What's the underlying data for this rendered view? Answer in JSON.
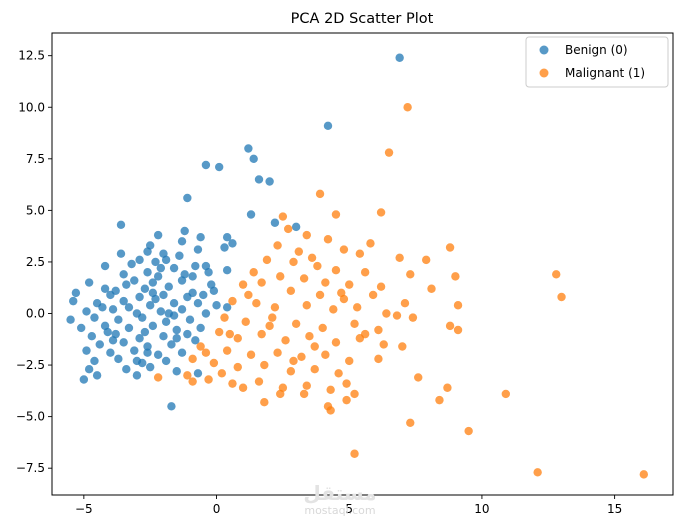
{
  "chart_data": {
    "type": "scatter",
    "title": "PCA 2D Scatter Plot",
    "xlabel": "",
    "ylabel": "",
    "xlim": [
      -6.2,
      17.2
    ],
    "ylim": [
      -8.8,
      13.6
    ],
    "xticks": [
      -5,
      0,
      5,
      10,
      15
    ],
    "yticks": [
      -7.5,
      -5.0,
      -2.5,
      0.0,
      2.5,
      5.0,
      7.5,
      10.0,
      12.5
    ],
    "xtick_labels": [
      "−5",
      "0",
      "5",
      "10",
      "15"
    ],
    "ytick_labels": [
      "−7.5",
      "−5.0",
      "−2.5",
      "0.0",
      "2.5",
      "5.0",
      "7.5",
      "10.0",
      "12.5"
    ],
    "grid": false,
    "legend_position": "top-right",
    "marker_alpha": 0.75,
    "series": [
      {
        "name": "Benign (0)",
        "color": "#1f77b4",
        "points": [
          [
            6.9,
            12.4
          ],
          [
            4.2,
            9.1
          ],
          [
            1.2,
            8.0
          ],
          [
            1.4,
            7.5
          ],
          [
            -0.4,
            7.2
          ],
          [
            0.1,
            7.1
          ],
          [
            1.6,
            6.5
          ],
          [
            2.0,
            6.4
          ],
          [
            -1.1,
            5.6
          ],
          [
            1.3,
            4.8
          ],
          [
            2.2,
            4.4
          ],
          [
            3.0,
            4.2
          ],
          [
            -3.6,
            4.3
          ],
          [
            -1.2,
            4.0
          ],
          [
            -2.2,
            3.8
          ],
          [
            0.4,
            3.7
          ],
          [
            -0.6,
            3.7
          ],
          [
            -1.3,
            3.5
          ],
          [
            0.6,
            3.4
          ],
          [
            -2.5,
            3.3
          ],
          [
            -2.6,
            3.0
          ],
          [
            -0.7,
            3.1
          ],
          [
            -2.0,
            2.9
          ],
          [
            0.3,
            3.2
          ],
          [
            -0.8,
            2.3
          ],
          [
            -1.4,
            2.8
          ],
          [
            -2.9,
            2.6
          ],
          [
            -3.2,
            2.4
          ],
          [
            -4.2,
            2.3
          ],
          [
            -2.3,
            2.5
          ],
          [
            -1.9,
            2.6
          ],
          [
            -0.4,
            2.3
          ],
          [
            0.4,
            2.1
          ],
          [
            -2.6,
            2.0
          ],
          [
            -1.6,
            2.2
          ],
          [
            -0.3,
            2.0
          ],
          [
            -3.5,
            1.9
          ],
          [
            -2.2,
            1.8
          ],
          [
            -0.9,
            1.8
          ],
          [
            -4.8,
            1.5
          ],
          [
            -3.1,
            1.6
          ],
          [
            -2.4,
            1.5
          ],
          [
            -1.3,
            1.6
          ],
          [
            -0.2,
            1.4
          ],
          [
            -4.2,
            1.2
          ],
          [
            -3.8,
            1.1
          ],
          [
            -2.7,
            1.2
          ],
          [
            -1.8,
            1.3
          ],
          [
            -0.9,
            1.0
          ],
          [
            -5.3,
            1.0
          ],
          [
            -4.0,
            0.9
          ],
          [
            -2.9,
            0.8
          ],
          [
            -2.0,
            0.9
          ],
          [
            -1.1,
            0.8
          ],
          [
            -0.5,
            0.9
          ],
          [
            -5.4,
            0.6
          ],
          [
            -4.5,
            0.5
          ],
          [
            -3.5,
            0.6
          ],
          [
            -2.5,
            0.4
          ],
          [
            -1.6,
            0.5
          ],
          [
            -0.7,
            0.5
          ],
          [
            0.4,
            0.3
          ],
          [
            -4.9,
            0.1
          ],
          [
            -3.9,
            0.2
          ],
          [
            -3.0,
            0.0
          ],
          [
            -2.1,
            0.1
          ],
          [
            -1.3,
            0.2
          ],
          [
            -0.4,
            0.0
          ],
          [
            -5.5,
            -0.3
          ],
          [
            -4.6,
            -0.2
          ],
          [
            -3.7,
            -0.3
          ],
          [
            -2.8,
            -0.2
          ],
          [
            -1.9,
            -0.4
          ],
          [
            -1.0,
            -0.3
          ],
          [
            -5.1,
            -0.7
          ],
          [
            -4.2,
            -0.6
          ],
          [
            -3.3,
            -0.7
          ],
          [
            -2.4,
            -0.6
          ],
          [
            -1.5,
            -0.8
          ],
          [
            -0.6,
            -0.7
          ],
          [
            -4.7,
            -1.1
          ],
          [
            -3.8,
            -1.0
          ],
          [
            -2.9,
            -1.2
          ],
          [
            -2.0,
            -1.1
          ],
          [
            -1.1,
            -1.0
          ],
          [
            -4.4,
            -1.5
          ],
          [
            -3.5,
            -1.4
          ],
          [
            -2.6,
            -1.6
          ],
          [
            -1.7,
            -1.5
          ],
          [
            -0.8,
            -1.3
          ],
          [
            -4.9,
            -1.8
          ],
          [
            -4.0,
            -1.9
          ],
          [
            -3.1,
            -1.8
          ],
          [
            -2.2,
            -2.0
          ],
          [
            -1.3,
            -1.9
          ],
          [
            -4.6,
            -2.3
          ],
          [
            -3.7,
            -2.2
          ],
          [
            -2.8,
            -2.4
          ],
          [
            -1.9,
            -2.3
          ],
          [
            -3.4,
            -2.7
          ],
          [
            -2.5,
            -2.6
          ],
          [
            -1.5,
            -2.8
          ],
          [
            -4.8,
            -2.7
          ],
          [
            -4.5,
            -3.0
          ],
          [
            -5.0,
            -3.2
          ],
          [
            -3.0,
            -3.0
          ],
          [
            -0.7,
            -2.9
          ],
          [
            -1.7,
            -4.5
          ],
          [
            -2.3,
            0.7
          ],
          [
            -3.4,
            1.4
          ],
          [
            -2.7,
            -0.9
          ],
          [
            -1.6,
            -0.1
          ],
          [
            -3.9,
            -1.3
          ],
          [
            -2.1,
            2.2
          ],
          [
            -3.3,
            0.3
          ],
          [
            -4.1,
            -0.9
          ],
          [
            -2.6,
            -1.9
          ],
          [
            -1.2,
            1.9
          ],
          [
            -0.1,
            1.1
          ],
          [
            -3.6,
            2.9
          ],
          [
            -1.8,
            0.0
          ],
          [
            -3.0,
            -2.3
          ],
          [
            -2.4,
            1.0
          ],
          [
            -4.3,
            0.3
          ],
          [
            -1.5,
            -1.2
          ],
          [
            0.0,
            0.4
          ]
        ]
      },
      {
        "name": "Malignant (1)",
        "color": "#ff7f0e",
        "points": [
          [
            7.2,
            10.0
          ],
          [
            6.5,
            7.8
          ],
          [
            3.9,
            5.8
          ],
          [
            4.5,
            4.8
          ],
          [
            6.2,
            4.9
          ],
          [
            2.5,
            4.7
          ],
          [
            2.7,
            4.1
          ],
          [
            3.4,
            3.8
          ],
          [
            4.2,
            3.6
          ],
          [
            5.8,
            3.4
          ],
          [
            8.8,
            3.2
          ],
          [
            2.3,
            3.3
          ],
          [
            3.1,
            3.0
          ],
          [
            4.8,
            3.1
          ],
          [
            5.4,
            2.9
          ],
          [
            6.9,
            2.7
          ],
          [
            7.9,
            2.6
          ],
          [
            1.9,
            2.6
          ],
          [
            2.9,
            2.5
          ],
          [
            3.8,
            2.3
          ],
          [
            4.5,
            2.1
          ],
          [
            5.6,
            2.0
          ],
          [
            7.3,
            1.9
          ],
          [
            9.0,
            1.8
          ],
          [
            12.8,
            1.9
          ],
          [
            1.4,
            2.0
          ],
          [
            2.4,
            1.8
          ],
          [
            3.3,
            1.7
          ],
          [
            4.1,
            1.5
          ],
          [
            5.0,
            1.4
          ],
          [
            6.2,
            1.3
          ],
          [
            8.1,
            1.2
          ],
          [
            1.0,
            1.4
          ],
          [
            2.8,
            1.1
          ],
          [
            3.9,
            0.9
          ],
          [
            4.8,
            0.7
          ],
          [
            5.9,
            0.9
          ],
          [
            7.1,
            0.5
          ],
          [
            9.1,
            0.4
          ],
          [
            13.0,
            0.8
          ],
          [
            0.6,
            0.6
          ],
          [
            1.5,
            0.5
          ],
          [
            2.2,
            0.3
          ],
          [
            3.4,
            0.4
          ],
          [
            4.4,
            0.2
          ],
          [
            5.3,
            0.3
          ],
          [
            6.4,
            0.0
          ],
          [
            7.4,
            -0.2
          ],
          [
            0.3,
            -0.2
          ],
          [
            1.1,
            -0.4
          ],
          [
            2.0,
            -0.6
          ],
          [
            3.0,
            -0.5
          ],
          [
            4.0,
            -0.7
          ],
          [
            5.2,
            -0.5
          ],
          [
            6.1,
            -0.8
          ],
          [
            8.8,
            -0.6
          ],
          [
            9.1,
            -0.8
          ],
          [
            0.1,
            -0.9
          ],
          [
            0.8,
            -1.2
          ],
          [
            1.7,
            -1.0
          ],
          [
            2.6,
            -1.3
          ],
          [
            3.5,
            -1.1
          ],
          [
            4.5,
            -1.4
          ],
          [
            5.4,
            -1.2
          ],
          [
            6.3,
            -1.5
          ],
          [
            7.0,
            -1.6
          ],
          [
            -0.6,
            -1.6
          ],
          [
            0.4,
            -1.8
          ],
          [
            1.3,
            -2.0
          ],
          [
            2.3,
            -1.9
          ],
          [
            3.2,
            -2.1
          ],
          [
            4.1,
            -2.0
          ],
          [
            5.0,
            -2.3
          ],
          [
            6.1,
            -2.2
          ],
          [
            -0.9,
            -2.2
          ],
          [
            -0.1,
            -2.4
          ],
          [
            0.8,
            -2.6
          ],
          [
            1.8,
            -2.5
          ],
          [
            2.8,
            -2.8
          ],
          [
            3.7,
            -2.7
          ],
          [
            4.6,
            -2.9
          ],
          [
            -1.1,
            -3.0
          ],
          [
            -0.3,
            -3.2
          ],
          [
            0.6,
            -3.4
          ],
          [
            1.6,
            -3.3
          ],
          [
            2.5,
            -3.6
          ],
          [
            3.4,
            -3.5
          ],
          [
            4.3,
            -3.7
          ],
          [
            5.2,
            -3.9
          ],
          [
            7.6,
            -3.1
          ],
          [
            -2.2,
            -3.1
          ],
          [
            -0.9,
            -3.3
          ],
          [
            1.0,
            -3.6
          ],
          [
            2.4,
            -3.9
          ],
          [
            3.3,
            -3.9
          ],
          [
            4.9,
            -4.2
          ],
          [
            8.7,
            -3.6
          ],
          [
            10.9,
            -3.9
          ],
          [
            8.4,
            -4.2
          ],
          [
            1.8,
            -4.3
          ],
          [
            4.2,
            -4.5
          ],
          [
            4.3,
            -4.7
          ],
          [
            7.3,
            -5.3
          ],
          [
            9.5,
            -5.7
          ],
          [
            5.2,
            -6.8
          ],
          [
            12.1,
            -7.7
          ],
          [
            16.1,
            -7.8
          ],
          [
            0.5,
            -1.0
          ],
          [
            1.2,
            0.9
          ],
          [
            3.7,
            -1.6
          ],
          [
            4.9,
            -3.4
          ],
          [
            2.9,
            -2.3
          ],
          [
            0.2,
            -2.9
          ],
          [
            5.6,
            -1.0
          ],
          [
            6.8,
            -0.1
          ],
          [
            3.6,
            2.7
          ],
          [
            1.7,
            1.5
          ],
          [
            2.1,
            -0.2
          ],
          [
            4.7,
            1.0
          ],
          [
            -0.4,
            -1.9
          ]
        ]
      }
    ]
  },
  "watermark": {
    "text": "mostaql.com",
    "glyph": "مستقل"
  }
}
